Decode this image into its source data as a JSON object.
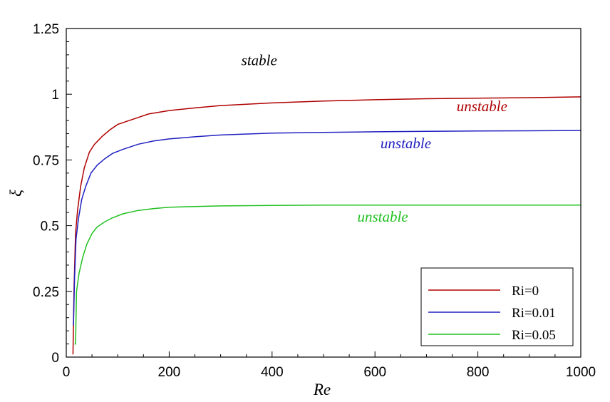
{
  "chart_data": {
    "type": "line",
    "xlabel": "Re",
    "ylabel": "ξ",
    "xlim": [
      0,
      1000
    ],
    "ylim": [
      0,
      1.25
    ],
    "x_ticks": [
      0,
      200,
      400,
      600,
      800,
      1000
    ],
    "y_ticks": [
      0,
      0.25,
      0.5,
      0.75,
      1,
      1.25
    ],
    "y_tick_labels": [
      "0",
      "0.25",
      "0.5",
      "0.75",
      "1",
      "1.25"
    ],
    "legend_position": "bottom-right",
    "series": [
      {
        "name": "Ri=0",
        "color": "#b00000",
        "x": [
          13,
          15,
          18,
          22,
          28,
          35,
          45,
          55,
          70,
          85,
          100,
          130,
          160,
          200,
          250,
          300,
          400,
          500,
          600,
          700,
          800,
          900,
          1000
        ],
        "y": [
          0.01,
          0.25,
          0.47,
          0.56,
          0.65,
          0.72,
          0.78,
          0.81,
          0.84,
          0.865,
          0.885,
          0.905,
          0.925,
          0.938,
          0.948,
          0.957,
          0.967,
          0.974,
          0.979,
          0.983,
          0.985,
          0.987,
          0.99
        ]
      },
      {
        "name": "Ri=0.01",
        "color": "#2020c0",
        "x": [
          14,
          16,
          19,
          24,
          30,
          38,
          48,
          60,
          75,
          90,
          110,
          140,
          170,
          200,
          250,
          300,
          400,
          500,
          600,
          700,
          800,
          900,
          1000
        ],
        "y": [
          0.12,
          0.3,
          0.45,
          0.53,
          0.6,
          0.65,
          0.7,
          0.73,
          0.755,
          0.775,
          0.79,
          0.81,
          0.822,
          0.83,
          0.838,
          0.845,
          0.852,
          0.855,
          0.857,
          0.859,
          0.86,
          0.861,
          0.862
        ]
      },
      {
        "name": "Ri=0.05",
        "color": "#20c020",
        "x": [
          16,
          18,
          20,
          25,
          32,
          40,
          50,
          60,
          75,
          90,
          110,
          140,
          170,
          200,
          250,
          300,
          400,
          500,
          600,
          700,
          800,
          900,
          1000
        ],
        "y": [
          0.05,
          0.05,
          0.25,
          0.32,
          0.38,
          0.43,
          0.47,
          0.495,
          0.515,
          0.53,
          0.545,
          0.558,
          0.565,
          0.57,
          0.573,
          0.575,
          0.577,
          0.578,
          0.578,
          0.578,
          0.578,
          0.578,
          0.578
        ]
      }
    ],
    "annotations": [
      {
        "text": "stable",
        "x": 375,
        "y": 1.11,
        "color": "#000000"
      },
      {
        "text": "unstable",
        "x": 808,
        "y": 0.935,
        "color": "#b00000"
      },
      {
        "text": "unstable",
        "x": 660,
        "y": 0.795,
        "color": "#2020c0"
      },
      {
        "text": "unstable",
        "x": 615,
        "y": 0.515,
        "color": "#20c020"
      }
    ]
  }
}
